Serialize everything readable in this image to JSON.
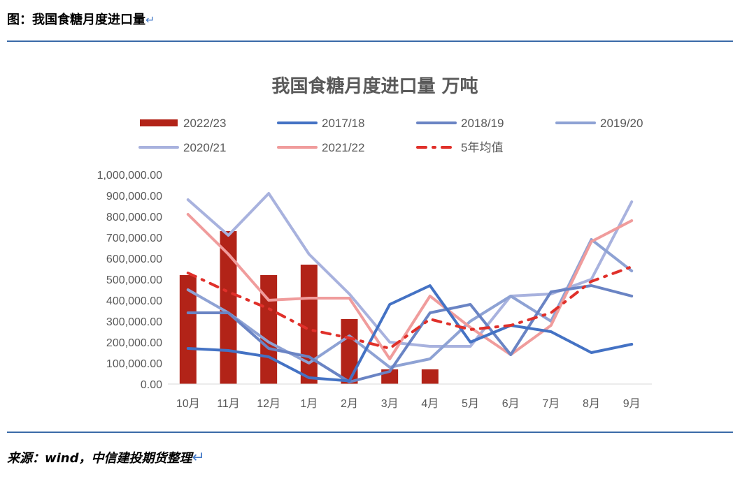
{
  "header": {
    "caption": "图：我国食糖月度进口量",
    "return_mark": "↵"
  },
  "footer": {
    "source": "来源：wind，中信建投期货整理",
    "return_mark": "↵"
  },
  "chart_data": {
    "type": "bar",
    "title": "我国食糖月度进口量 万吨",
    "categories": [
      "10月",
      "11月",
      "12月",
      "1月",
      "2月",
      "3月",
      "4月",
      "5月",
      "6月",
      "7月",
      "8月",
      "9月"
    ],
    "yticks": [
      "0.00",
      "100,000.00",
      "200,000.00",
      "300,000.00",
      "400,000.00",
      "500,000.00",
      "600,000.00",
      "700,000.00",
      "800,000.00",
      "900,000.00",
      "1,000,000.00"
    ],
    "ylim": [
      0,
      1000000
    ],
    "grid": false,
    "legend_position": "top",
    "bar_series": {
      "name": "2022/23",
      "color": "#b22318",
      "values": [
        520000,
        730000,
        520000,
        570000,
        310000,
        70000,
        70000,
        null,
        null,
        null,
        null,
        null
      ]
    },
    "line_series": [
      {
        "name": "2017/18",
        "color": "#4472c4",
        "dash": "solid",
        "values": [
          170000,
          160000,
          130000,
          30000,
          15000,
          380000,
          470000,
          200000,
          280000,
          250000,
          150000,
          190000
        ]
      },
      {
        "name": "2018/19",
        "color": "#6a84c4",
        "dash": "solid",
        "values": [
          340000,
          340000,
          170000,
          130000,
          10000,
          60000,
          340000,
          380000,
          140000,
          440000,
          470000,
          420000
        ]
      },
      {
        "name": "2019/20",
        "color": "#8ea2d4",
        "dash": "solid",
        "values": [
          450000,
          340000,
          200000,
          100000,
          230000,
          80000,
          120000,
          300000,
          420000,
          300000,
          690000,
          540000
        ]
      },
      {
        "name": "2020/21",
        "color": "#a8b2de",
        "dash": "solid",
        "values": [
          880000,
          710000,
          910000,
          620000,
          430000,
          200000,
          180000,
          180000,
          420000,
          430000,
          500000,
          870000
        ]
      },
      {
        "name": "2021/22",
        "color": "#f09c9c",
        "dash": "solid",
        "values": [
          810000,
          620000,
          400000,
          410000,
          410000,
          120000,
          420000,
          270000,
          140000,
          280000,
          680000,
          780000
        ]
      },
      {
        "name": "5年均值",
        "color": "#e0302a",
        "dash": "dashdot",
        "values": [
          530000,
          440000,
          360000,
          260000,
          220000,
          170000,
          310000,
          260000,
          280000,
          340000,
          490000,
          560000
        ]
      }
    ]
  }
}
